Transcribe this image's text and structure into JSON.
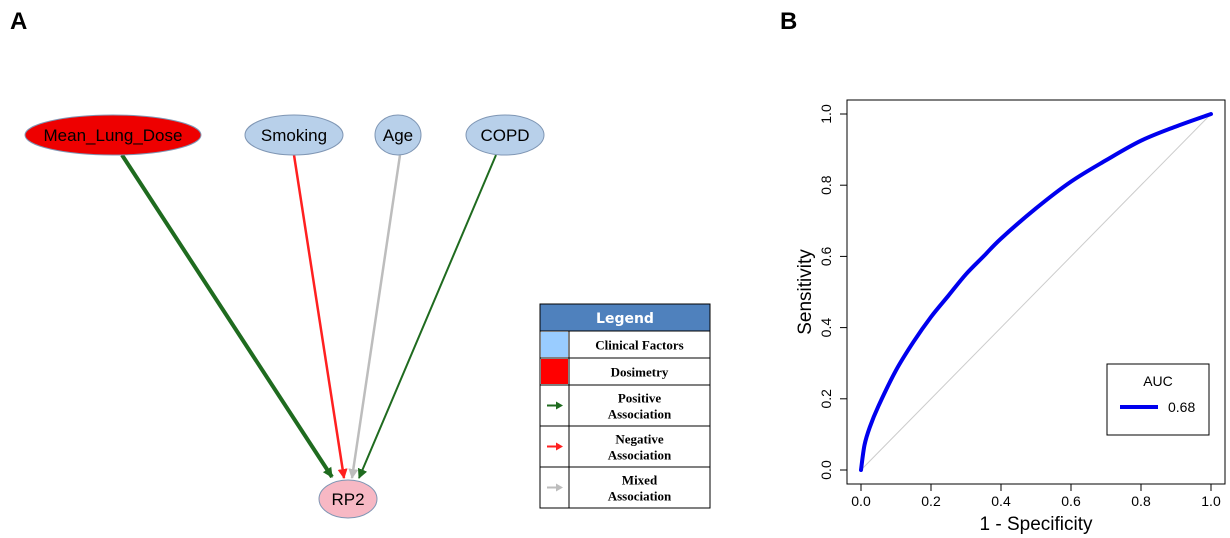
{
  "panels": {
    "a_label": "A",
    "b_label": "B"
  },
  "network": {
    "nodes": [
      {
        "id": "mld",
        "label": "Mean_Lung_Dose",
        "category": "dosimetry"
      },
      {
        "id": "smoking",
        "label": "Smoking",
        "category": "clinical"
      },
      {
        "id": "age",
        "label": "Age",
        "category": "clinical"
      },
      {
        "id": "copd",
        "label": "COPD",
        "category": "clinical"
      },
      {
        "id": "rp2",
        "label": "RP2",
        "category": "outcome"
      }
    ],
    "edges": [
      {
        "from": "mld",
        "to": "rp2",
        "association": "positive"
      },
      {
        "from": "smoking",
        "to": "rp2",
        "association": "negative"
      },
      {
        "from": "age",
        "to": "rp2",
        "association": "mixed"
      },
      {
        "from": "copd",
        "to": "rp2",
        "association": "positive"
      }
    ],
    "colors": {
      "clinical": "#b8d0ea",
      "dosimetry": "#ee0000",
      "outcome": "#f7b8c4",
      "positive": "#1f6b1f",
      "negative": "#ff2020",
      "mixed": "#bdbdbd"
    }
  },
  "legend": {
    "title": "Legend",
    "items": [
      {
        "label_lines": [
          "Clinical Factors"
        ],
        "swatch": "clinical"
      },
      {
        "label_lines": [
          "Dosimetry"
        ],
        "swatch": "dosimetry"
      },
      {
        "label_lines": [
          "Positive",
          "Association"
        ],
        "swatch": "positive-arrow"
      },
      {
        "label_lines": [
          "Negative",
          "Association"
        ],
        "swatch": "negative-arrow"
      },
      {
        "label_lines": [
          "Mixed",
          "Association"
        ],
        "swatch": "mixed-arrow"
      }
    ]
  },
  "chart_data": {
    "type": "line",
    "title": "",
    "xlabel": "1 - Specificity",
    "ylabel": "Sensitivity",
    "xlim": [
      0,
      1
    ],
    "ylim": [
      0,
      1
    ],
    "xticks": [
      "0.0",
      "0.2",
      "0.4",
      "0.6",
      "0.8",
      "1.0"
    ],
    "yticks": [
      "0.0",
      "0.2",
      "0.4",
      "0.6",
      "0.8",
      "1.0"
    ],
    "series": [
      {
        "name": "0.68",
        "color": "#0000ee",
        "x": [
          0,
          0.01,
          0.025,
          0.05,
          0.1,
          0.15,
          0.2,
          0.25,
          0.3,
          0.35,
          0.4,
          0.5,
          0.6,
          0.7,
          0.8,
          0.9,
          1.0
        ],
        "y": [
          0,
          0.07,
          0.12,
          0.18,
          0.28,
          0.36,
          0.43,
          0.49,
          0.55,
          0.6,
          0.65,
          0.735,
          0.81,
          0.87,
          0.925,
          0.965,
          1.0
        ]
      }
    ],
    "reference_line": {
      "color": "#cccccc"
    },
    "legend": {
      "title": "AUC",
      "position": "bottom-right"
    },
    "grid": false
  }
}
